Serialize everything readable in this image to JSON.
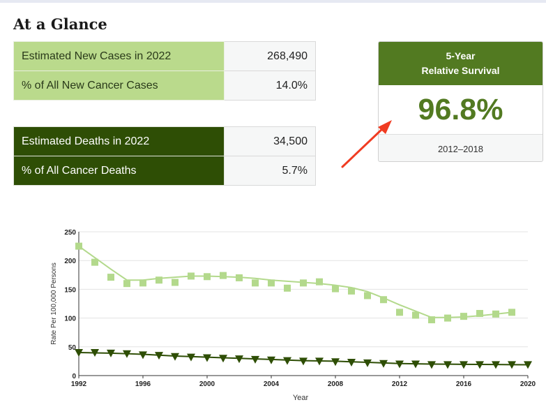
{
  "page": {
    "title": "At a Glance"
  },
  "new_cases": {
    "rows": [
      {
        "label": "Estimated New Cases in 2022",
        "value": "268,490"
      },
      {
        "label": "% of All New Cancer Cases",
        "value": "14.0%"
      }
    ]
  },
  "deaths": {
    "rows": [
      {
        "label": "Estimated Deaths in 2022",
        "value": "34,500"
      },
      {
        "label": "% of All Cancer Deaths",
        "value": "5.7%"
      }
    ]
  },
  "survival": {
    "header_line1": "5-Year",
    "header_line2": "Relative Survival",
    "value": "96.8%",
    "period": "2012–2018"
  },
  "colors": {
    "new_cases_light": "#bada8c",
    "deaths_dark": "#2e4e05",
    "survival_green": "#527a21",
    "annotation_arrow": "#f03c22",
    "series_new": "#b3d98c",
    "series_death": "#2e4e05"
  },
  "annotation": {
    "icon": "red-arrow-icon"
  },
  "chart_data": {
    "type": "line",
    "xlabel": "Year",
    "ylabel": "Rate Per 100,000 Persons",
    "xlim": [
      1992,
      2020
    ],
    "ylim": [
      0,
      250
    ],
    "x_ticks": [
      1992,
      1996,
      2000,
      2004,
      2008,
      2012,
      2016,
      2020
    ],
    "y_ticks": [
      0,
      50,
      100,
      150,
      200,
      250
    ],
    "grid": true,
    "series": [
      {
        "marker": "square",
        "color": "#b3d98c",
        "x": [
          1992,
          1993,
          1994,
          1995,
          1996,
          1997,
          1998,
          1999,
          2000,
          2001,
          2002,
          2003,
          2004,
          2005,
          2006,
          2007,
          2008,
          2009,
          2010,
          2011,
          2012,
          2013,
          2014,
          2015,
          2016,
          2017,
          2018,
          2019
        ],
        "y": [
          225,
          197,
          171,
          160,
          161,
          166,
          162,
          173,
          172,
          174,
          170,
          161,
          161,
          152,
          161,
          163,
          151,
          147,
          139,
          132,
          110,
          105,
          97,
          100,
          103,
          108,
          107,
          110
        ],
        "trend": [
          225,
          205,
          185,
          166,
          166,
          169,
          171,
          173,
          173,
          172,
          171,
          169,
          166,
          164,
          162,
          160,
          157,
          153,
          146,
          135,
          123,
          112,
          101,
          101,
          102,
          104,
          107,
          110
        ]
      },
      {
        "marker": "triangle-down",
        "color": "#2e4e05",
        "x": [
          1992,
          1993,
          1994,
          1995,
          1996,
          1997,
          1998,
          1999,
          2000,
          2001,
          2002,
          2003,
          2004,
          2005,
          2006,
          2007,
          2008,
          2009,
          2010,
          2011,
          2012,
          2013,
          2014,
          2015,
          2016,
          2017,
          2018,
          2019,
          2020
        ],
        "y": [
          40,
          40,
          39,
          38,
          36,
          35,
          33,
          32,
          31,
          30,
          29,
          28,
          27,
          26,
          25,
          25,
          24,
          23,
          22,
          21,
          20,
          20,
          19,
          19,
          19,
          19,
          19,
          19,
          19
        ],
        "trend": [
          40,
          39.5,
          39,
          38,
          37,
          35.5,
          34,
          33,
          32,
          31,
          30,
          29,
          28,
          27,
          26,
          25.5,
          25,
          24,
          23,
          22,
          21,
          20.5,
          20,
          19.8,
          19.6,
          19.4,
          19.2,
          19,
          18.8
        ]
      }
    ]
  }
}
